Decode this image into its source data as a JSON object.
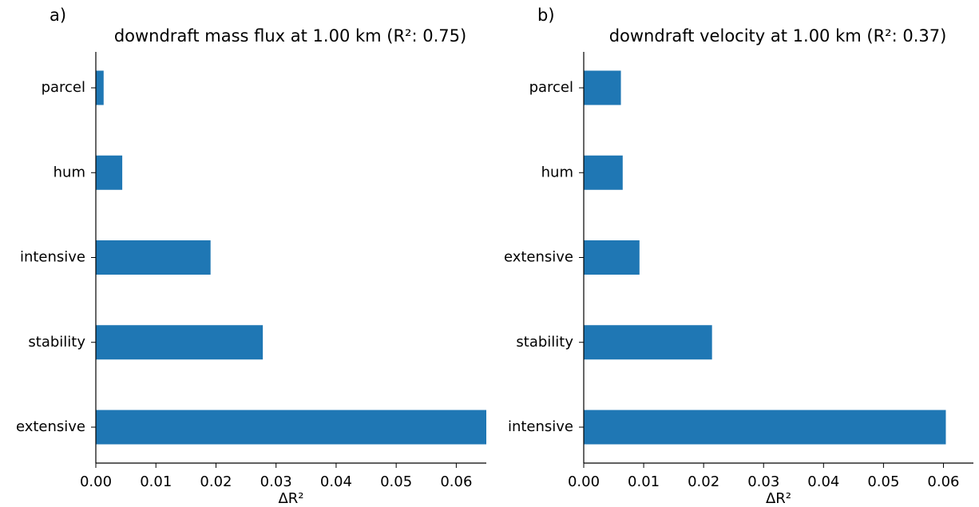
{
  "chart_data": [
    {
      "type": "barh",
      "panel_label": "a)",
      "title": "downdraft mass flux at 1.00 km (R²: 0.75)",
      "xlabel": "ΔR²",
      "categories": [
        "parcel",
        "hum",
        "intensive",
        "stability",
        "extensive"
      ],
      "values": [
        0.0013,
        0.0044,
        0.0191,
        0.0278,
        0.065
      ],
      "color": "#1f77b4",
      "xlim": [
        0,
        0.065
      ],
      "xticks": [
        {
          "value": 0,
          "label": "0.00"
        },
        0.01,
        0.02,
        0.03,
        0.04,
        0.05,
        0.06
      ]
    },
    {
      "type": "barh",
      "panel_label": "b)",
      "title": "downdraft velocity at 1.00 km (R²: 0.37)",
      "xlabel": "ΔR²",
      "categories": [
        "parcel",
        "hum",
        "extensive",
        "stability",
        "intensive"
      ],
      "values": [
        0.0062,
        0.0065,
        0.0093,
        0.0214,
        0.0604
      ],
      "color": "#1f77b4",
      "xlim": [
        0,
        0.065
      ],
      "xticks": [
        {
          "value": 0,
          "label": "0.00"
        },
        0.01,
        0.02,
        0.03,
        0.04,
        0.05,
        0.06
      ]
    }
  ]
}
